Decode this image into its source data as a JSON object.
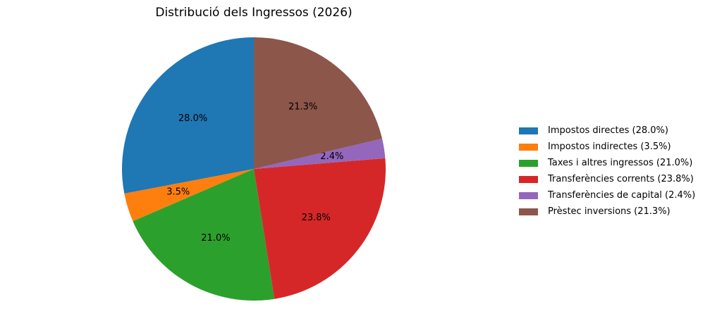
{
  "chart_data": {
    "type": "pie",
    "title": "Distribució dels Ingressos (2026)",
    "start_angle_deg": 90,
    "direction": "counterclockwise",
    "legend_position": "right",
    "slices": [
      {
        "label": "Impostos directes (28.0%)",
        "value": 28.0,
        "display": "28.0%",
        "color": "#1f77b4"
      },
      {
        "label": "Impostos indirectes (3.5%)",
        "value": 3.5,
        "display": "3.5%",
        "color": "#ff7f0e"
      },
      {
        "label": "Taxes i altres ingressos (21.0%)",
        "value": 21.0,
        "display": "21.0%",
        "color": "#2ca02c"
      },
      {
        "label": "Transferències corrents (23.8%)",
        "value": 23.8,
        "display": "23.8%",
        "color": "#d62728"
      },
      {
        "label": "Transferències de capital (2.4%)",
        "value": 2.4,
        "display": "2.4%",
        "color": "#9467bd"
      },
      {
        "label": "Prèstec inversions (21.3%)",
        "value": 21.3,
        "display": "21.3%",
        "color": "#8c564b"
      }
    ]
  }
}
